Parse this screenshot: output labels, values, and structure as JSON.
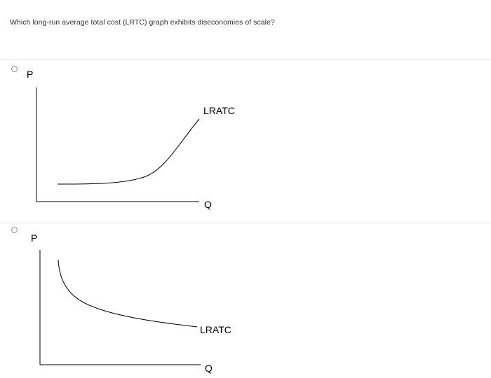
{
  "question": {
    "text": "Which long-run average total cost (LRTC) graph exhibits diseconomies of scale?"
  },
  "options": [
    {
      "y_axis_label": "P",
      "x_axis_label": "Q",
      "curve_label": "LRATC"
    },
    {
      "y_axis_label": "P",
      "x_axis_label": "Q",
      "curve_label": "LRATC"
    }
  ],
  "colors": {
    "divider": "#e4e4e4",
    "axis": "#000000",
    "radio_border": "#8a8a8a"
  }
}
